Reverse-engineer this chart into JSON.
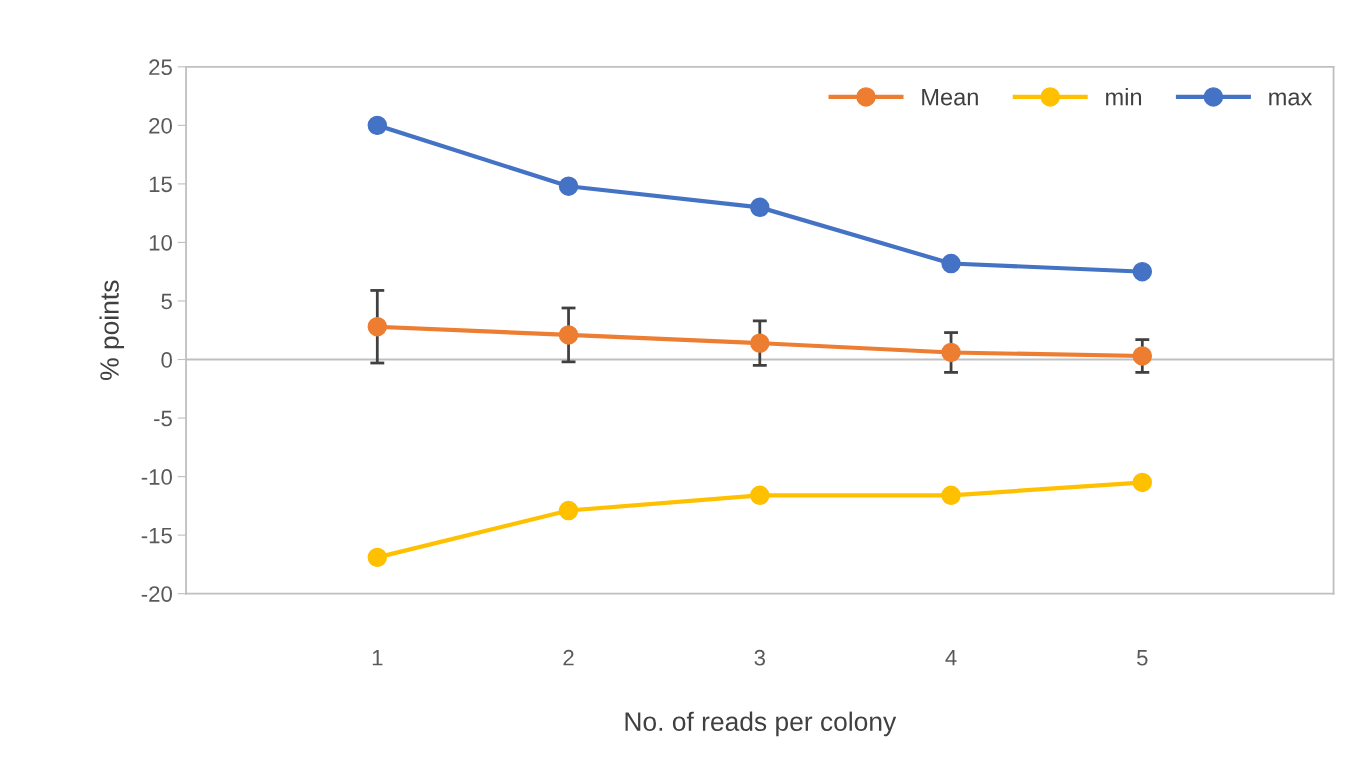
{
  "chart_data": {
    "type": "line",
    "xlabel": "No. of reads per colony",
    "ylabel": "% points",
    "categories": [
      "1",
      "2",
      "3",
      "4",
      "5"
    ],
    "series": [
      {
        "name": "Mean",
        "color": "#ed7d31",
        "values": [
          2.8,
          2.1,
          1.4,
          0.6,
          0.3
        ],
        "errors": [
          3.1,
          2.3,
          1.9,
          1.7,
          1.4
        ]
      },
      {
        "name": "min",
        "color": "#ffc000",
        "values": [
          -16.9,
          -12.9,
          -11.6,
          -11.6,
          -10.5
        ]
      },
      {
        "name": "max",
        "color": "#4472c4",
        "values": [
          20.0,
          14.8,
          13.0,
          8.2,
          7.5
        ]
      }
    ],
    "ylim": [
      -20,
      25
    ],
    "yticks": [
      -20,
      -15,
      -10,
      -5,
      0,
      5,
      10,
      15,
      20,
      25
    ],
    "ref_lines": [
      {
        "axis": "y",
        "value": 0,
        "color": "#bfbfbf"
      }
    ],
    "grid": false,
    "legend": "top right",
    "marker": "circle",
    "line_style": "solid"
  }
}
